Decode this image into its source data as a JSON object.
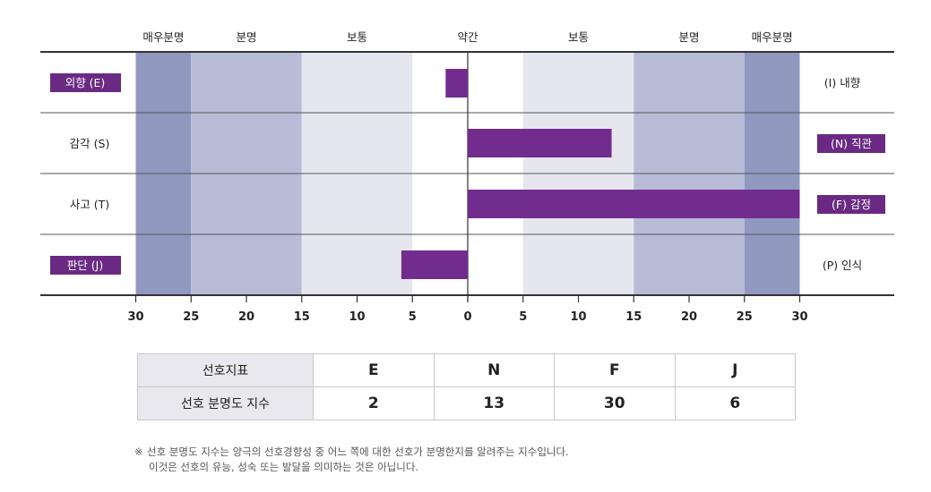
{
  "chart_data": {
    "type": "bar",
    "orientation": "horizontal-diverging",
    "zone_labels": [
      "매우분명",
      "분명",
      "보통",
      "약간",
      "보통",
      "분명",
      "매우분명"
    ],
    "ticks_left": [
      "30",
      "25",
      "20",
      "15",
      "10",
      "5",
      "0"
    ],
    "ticks_right": [
      "5",
      "10",
      "15",
      "20",
      "25",
      "30"
    ],
    "xlim": [
      -30,
      30
    ],
    "zone_colors": {
      "very_clear": "#9198c0",
      "clear": "#b7bbd6",
      "moderate": "#e6e6ef",
      "slight": "#ffffff"
    },
    "bar_color": "#722c8e",
    "highlight_label_bg": "#6a2a83",
    "rows": [
      {
        "left_label": "외향 (E)",
        "right_label": "(I) 내향",
        "value": -2,
        "highlight": "left"
      },
      {
        "left_label": "감각 (S)",
        "right_label": "(N) 직관",
        "value": 13,
        "highlight": "right"
      },
      {
        "left_label": "사고 (T)",
        "right_label": "(F) 감정",
        "value": 30,
        "highlight": "right"
      },
      {
        "left_label": "판단 (J)",
        "right_label": "(P) 인식",
        "value": -6,
        "highlight": "left"
      }
    ]
  },
  "table": {
    "row1_head": "선호지표",
    "row1": [
      "E",
      "N",
      "F",
      "J"
    ],
    "row2_head": "선호 분명도 지수",
    "row2": [
      "2",
      "13",
      "30",
      "6"
    ]
  },
  "footnote": {
    "mark": "※",
    "line1": "선호 분명도 지수는 양극의 선호경향성 중 어느 쪽에 대한 선호가 분명한지를 알려주는 지수입니다.",
    "line2": "이것은 선호의 유능, 성숙 또는 발달을 의미하는 것은 아닙니다."
  }
}
